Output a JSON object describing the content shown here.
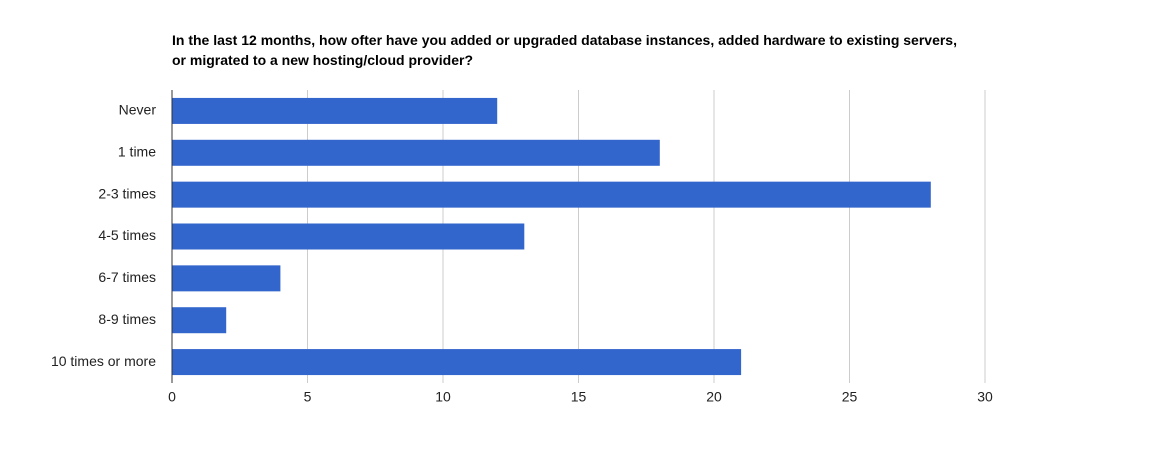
{
  "chart_data": {
    "type": "hbar",
    "title": "In the last 12 months, how ofter have you added or upgraded database instances, added hardware to existing servers, or migrated to a new hosting/cloud provider?",
    "categories": [
      "Never",
      "1 time",
      "2-3 times",
      "4-5 times",
      "6-7 times",
      "8-9 times",
      "10 times or more"
    ],
    "values": [
      12,
      18,
      28,
      13,
      4,
      2,
      21
    ],
    "color": "#3366cc",
    "xlim": [
      0,
      30
    ],
    "xticks": [
      0,
      5,
      10,
      15,
      20,
      25,
      30
    ],
    "grid": true
  }
}
